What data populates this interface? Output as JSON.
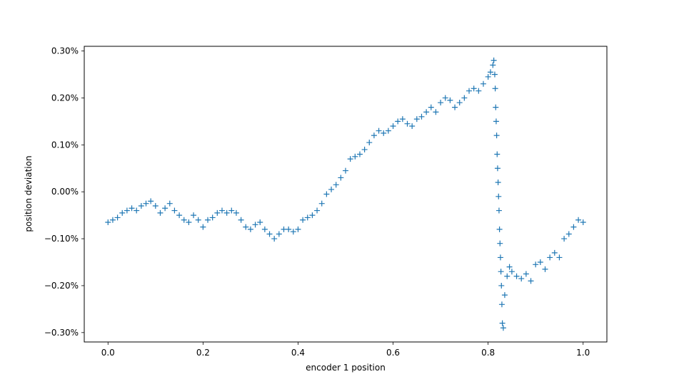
{
  "chart_data": {
    "type": "scatter",
    "marker": "+",
    "marker_color": "#1f77b4",
    "xlabel": "encoder 1 position",
    "ylabel": "position deviation",
    "xlim": [
      -0.05,
      1.05
    ],
    "ylim": [
      -0.32,
      0.31
    ],
    "xticks": [
      0.0,
      0.2,
      0.4,
      0.6,
      0.8,
      1.0
    ],
    "xtick_labels": [
      "0.0",
      "0.2",
      "0.4",
      "0.6",
      "0.8",
      "1.0"
    ],
    "yticks": [
      0.3,
      0.2,
      0.1,
      0.0,
      -0.1,
      -0.2,
      -0.3
    ],
    "ytick_labels": [
      "0.30%",
      "0.20%",
      "0.10%",
      "0.00%",
      "−0.10%",
      "−0.20%",
      "−0.30%"
    ],
    "y_unit": "%",
    "grid": false,
    "legend": "none",
    "series": [
      {
        "x": [
          0.0,
          0.01,
          0.02,
          0.03,
          0.04,
          0.05,
          0.06,
          0.07,
          0.08,
          0.09,
          0.1,
          0.11,
          0.12,
          0.13,
          0.14,
          0.15,
          0.16,
          0.17,
          0.18,
          0.19,
          0.2,
          0.21,
          0.22,
          0.23,
          0.24,
          0.25,
          0.26,
          0.27,
          0.28,
          0.29,
          0.3,
          0.31,
          0.32,
          0.33,
          0.34,
          0.35,
          0.36,
          0.37,
          0.38,
          0.39,
          0.4,
          0.41,
          0.42,
          0.43,
          0.44,
          0.45,
          0.46,
          0.47,
          0.48,
          0.49,
          0.5,
          0.51,
          0.52,
          0.53,
          0.54,
          0.55,
          0.56,
          0.57,
          0.58,
          0.59,
          0.6,
          0.61,
          0.62,
          0.63,
          0.64,
          0.65,
          0.66,
          0.67,
          0.68,
          0.69,
          0.7,
          0.71,
          0.72,
          0.73,
          0.74,
          0.75,
          0.76,
          0.77,
          0.78,
          0.79,
          0.8,
          0.805,
          0.81,
          0.812,
          0.814,
          0.815,
          0.816,
          0.817,
          0.818,
          0.819,
          0.82,
          0.821,
          0.822,
          0.823,
          0.824,
          0.825,
          0.826,
          0.827,
          0.828,
          0.829,
          0.83,
          0.832,
          0.835,
          0.84,
          0.845,
          0.85,
          0.86,
          0.87,
          0.88,
          0.89,
          0.9,
          0.91,
          0.92,
          0.93,
          0.94,
          0.95,
          0.96,
          0.97,
          0.98,
          0.99,
          1.0
        ],
        "y": [
          -0.065,
          -0.06,
          -0.055,
          -0.045,
          -0.04,
          -0.035,
          -0.04,
          -0.03,
          -0.025,
          -0.02,
          -0.03,
          -0.045,
          -0.035,
          -0.025,
          -0.04,
          -0.05,
          -0.06,
          -0.065,
          -0.05,
          -0.06,
          -0.075,
          -0.06,
          -0.055,
          -0.045,
          -0.04,
          -0.045,
          -0.04,
          -0.045,
          -0.06,
          -0.075,
          -0.08,
          -0.07,
          -0.065,
          -0.08,
          -0.09,
          -0.1,
          -0.09,
          -0.08,
          -0.08,
          -0.085,
          -0.08,
          -0.06,
          -0.055,
          -0.05,
          -0.04,
          -0.025,
          -0.005,
          0.005,
          0.015,
          0.03,
          0.045,
          0.07,
          0.075,
          0.08,
          0.09,
          0.105,
          0.12,
          0.13,
          0.125,
          0.13,
          0.14,
          0.15,
          0.155,
          0.145,
          0.14,
          0.155,
          0.16,
          0.17,
          0.18,
          0.17,
          0.19,
          0.2,
          0.195,
          0.18,
          0.19,
          0.2,
          0.215,
          0.22,
          0.215,
          0.23,
          0.245,
          0.255,
          0.27,
          0.28,
          0.25,
          0.22,
          0.18,
          0.15,
          0.12,
          0.08,
          0.05,
          0.02,
          -0.01,
          -0.04,
          -0.08,
          -0.11,
          -0.14,
          -0.17,
          -0.2,
          -0.24,
          -0.28,
          -0.29,
          -0.22,
          -0.18,
          -0.16,
          -0.17,
          -0.18,
          -0.185,
          -0.175,
          -0.19,
          -0.155,
          -0.15,
          -0.165,
          -0.14,
          -0.13,
          -0.14,
          -0.1,
          -0.09,
          -0.075,
          -0.06,
          -0.065
        ]
      }
    ]
  }
}
